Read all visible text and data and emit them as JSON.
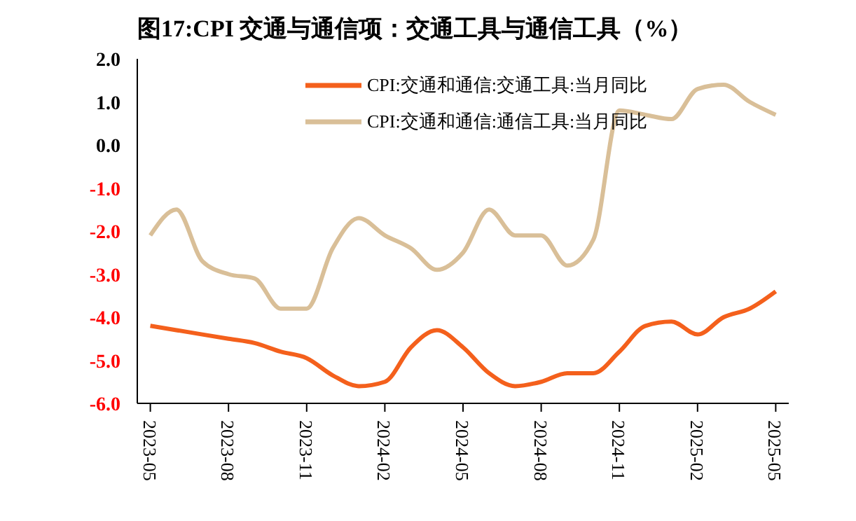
{
  "chart_data": {
    "type": "line",
    "title": "图17:CPI 交通与通信项：交通工具与通信工具（%）",
    "categories": [
      "2023-05",
      null,
      null,
      "2023-08",
      null,
      null,
      "2023-11",
      null,
      null,
      "2024-02",
      null,
      null,
      "2024-05",
      null,
      null,
      "2024-08",
      null,
      null,
      "2024-11",
      null,
      null,
      "2025-02",
      null,
      null,
      "2025-05"
    ],
    "series": [
      {
        "name": "CPI:交通和通信:交通工具:当月同比",
        "color": "#f4601c",
        "values": [
          -4.2,
          -4.3,
          -4.4,
          -4.5,
          -4.6,
          -4.8,
          -4.95,
          -5.35,
          -5.6,
          -5.5,
          -4.7,
          -4.3,
          -4.7,
          -5.3,
          -5.6,
          -5.5,
          -5.3,
          -5.3,
          -4.8,
          -4.2,
          -4.1,
          -4.4,
          -4.0,
          -3.8,
          -3.4
        ]
      },
      {
        "name": "CPI:交通和通信:通信工具:当月同比",
        "color": "#d9bf98",
        "values": [
          -2.1,
          -1.5,
          -2.7,
          -3.0,
          -3.1,
          -3.8,
          -3.8,
          -2.4,
          -1.7,
          -2.1,
          -2.4,
          -2.9,
          -2.5,
          -1.5,
          -2.1,
          -2.1,
          -2.8,
          -2.2,
          0.8,
          0.7,
          0.6,
          1.3,
          1.4,
          1.0,
          0.7
        ]
      }
    ],
    "ylim": [
      -6,
      2
    ],
    "yticks": [
      {
        "value": -6,
        "label": "-6.0"
      },
      {
        "value": -5,
        "label": "-5.0"
      },
      {
        "value": -4,
        "label": "-4.0"
      },
      {
        "value": -3,
        "label": "-3.0"
      },
      {
        "value": -2,
        "label": "-2.0"
      },
      {
        "value": -1,
        "label": "-1.0"
      },
      {
        "value": 0,
        "label": "0.0"
      },
      {
        "value": 1,
        "label": "1.0"
      },
      {
        "value": 2,
        "label": "2.0"
      }
    ],
    "grid": false,
    "legend": "top",
    "marker": "none",
    "line_style": "solid"
  }
}
